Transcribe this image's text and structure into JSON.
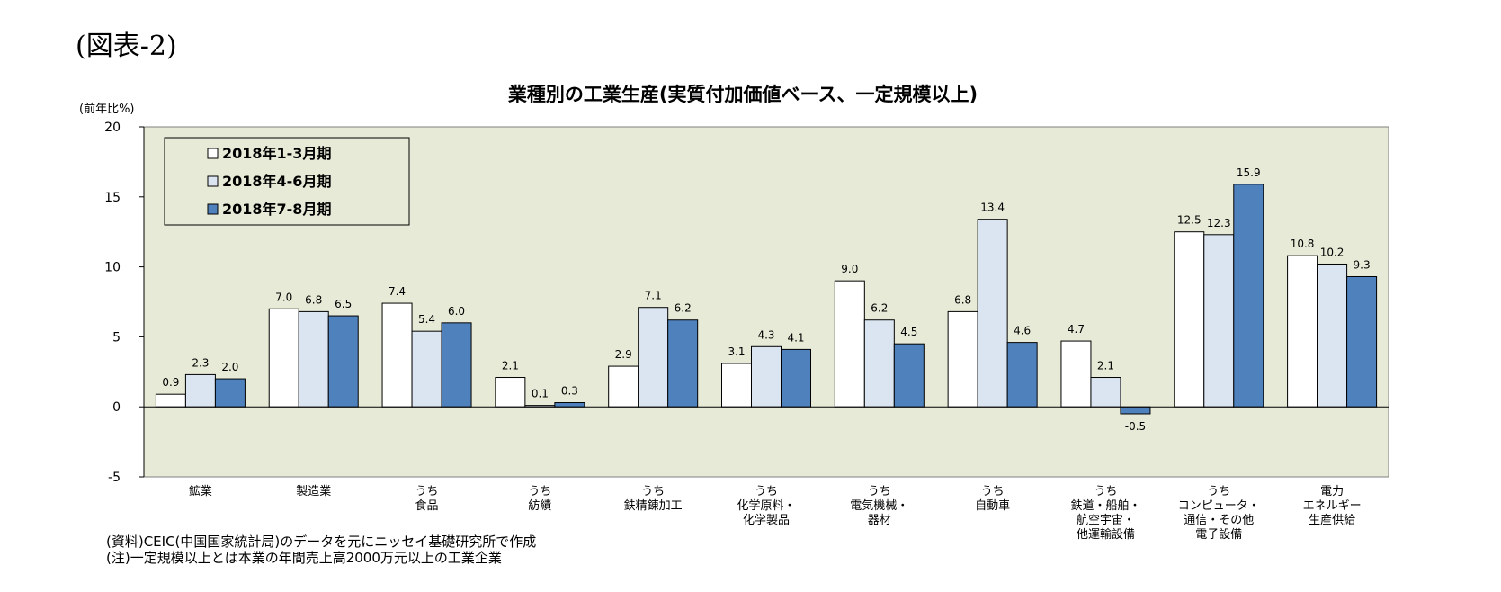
{
  "figure_label": "(図表-2)",
  "notes": {
    "source": "(資料)CEIC(中国国家統計局)のデータを元にニッセイ基礎研究所で作成",
    "note": "(注)一定規模以上とは本業の年間売上高2000万元以上の工業企業"
  },
  "chart_data": {
    "type": "bar",
    "title": "業種別の工業生産(実質付加価値ベース、一定規模以上)",
    "ylabel": "(前年比%)",
    "xlabel": "",
    "ylim": [
      -5,
      20
    ],
    "yticks": [
      -5,
      0,
      5,
      10,
      15,
      20
    ],
    "grid": false,
    "legend_position": "top-left",
    "background_color": "#e6ead6",
    "categories": [
      [
        "鉱業"
      ],
      [
        "製造業"
      ],
      [
        "うち",
        "食品"
      ],
      [
        "うち",
        "紡績"
      ],
      [
        "うち",
        "鉄精錬加工"
      ],
      [
        "うち",
        "化学原料・",
        "化学製品"
      ],
      [
        "うち",
        "電気機械・",
        "器材"
      ],
      [
        "うち",
        "自動車"
      ],
      [
        "うち",
        "鉄道・船舶・",
        "航空宇宙・",
        "他運輸設備"
      ],
      [
        "うち",
        "コンピュータ・",
        "通信・その他",
        "電子設備"
      ],
      [
        "電力",
        "エネルギー",
        "生産供給"
      ]
    ],
    "series": [
      {
        "name": "2018年1-3月期",
        "color": "#ffffff",
        "values": [
          0.9,
          7.0,
          7.4,
          2.1,
          2.9,
          3.1,
          9.0,
          6.8,
          4.7,
          12.5,
          10.8
        ],
        "labels": [
          "0.9",
          "7.0",
          "7.4",
          "2.1",
          "2.9",
          "3.1",
          "9.0",
          "6.8",
          "4.7",
          "12.5",
          "10.8"
        ]
      },
      {
        "name": "2018年4-6月期",
        "color": "#dbe5f1",
        "values": [
          2.3,
          6.8,
          5.4,
          0.1,
          7.1,
          4.3,
          6.2,
          13.4,
          2.1,
          12.3,
          10.2
        ],
        "labels": [
          "2.3",
          "6.8",
          "5.4",
          "0.1",
          "7.1",
          "4.3",
          "6.2",
          "13.4",
          "2.1",
          "12.3",
          "10.2"
        ]
      },
      {
        "name": "2018年7-8月期",
        "color": "#4f81bd",
        "values": [
          2.0,
          6.5,
          6.0,
          0.3,
          6.2,
          4.1,
          4.5,
          4.6,
          -0.5,
          15.9,
          9.3
        ],
        "labels": [
          "2.0",
          "6.5",
          "6.0",
          "0.3",
          "6.2",
          "4.1",
          "4.5",
          "4.6",
          "-0.5",
          "15.9",
          "9.3"
        ]
      }
    ]
  }
}
